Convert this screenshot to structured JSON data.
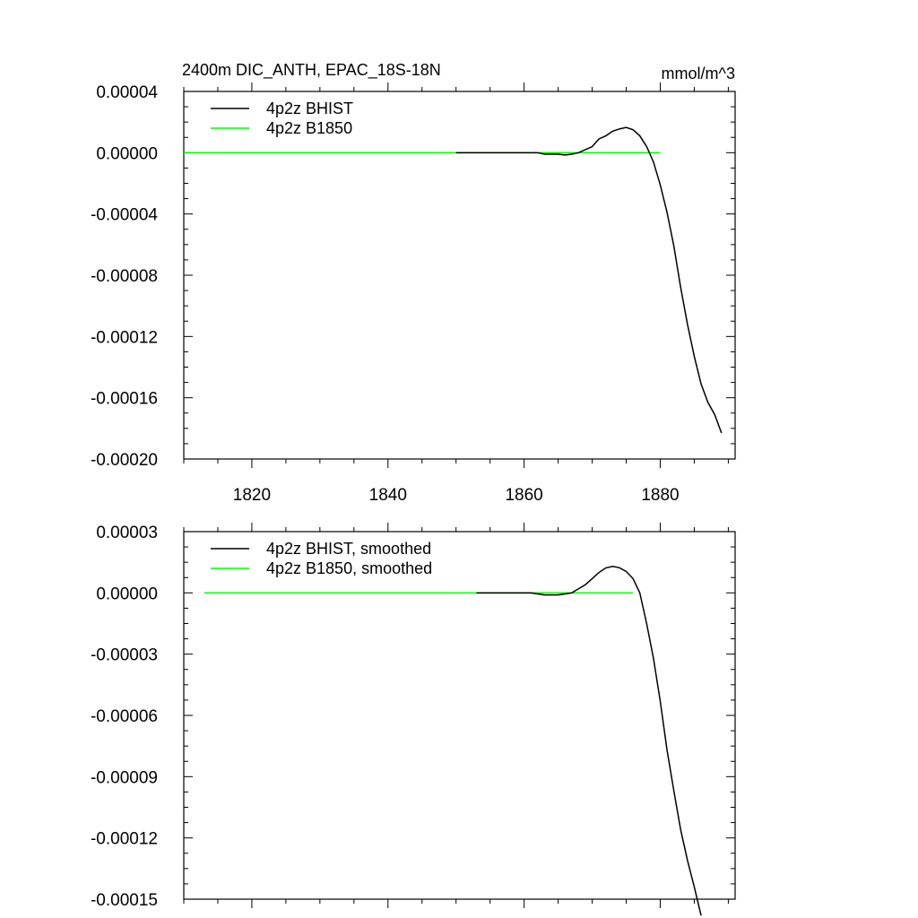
{
  "title_left": "2400m DIC_ANTH, EPAC_18S-18N",
  "title_right": "mmol/m^3",
  "colors": {
    "bhist": "#000000",
    "b1850": "#00ff00"
  },
  "chart_data": [
    {
      "type": "line",
      "xlim": [
        1810,
        1891
      ],
      "ylim": [
        -0.0002,
        4e-05
      ],
      "xticks": [
        1820,
        1840,
        1860,
        1880
      ],
      "xtick_labels": [
        "1820",
        "1840",
        "1860",
        "1880"
      ],
      "yticks": [
        4e-05,
        0,
        -4e-05,
        -8e-05,
        -0.00012,
        -0.00016,
        -0.0002
      ],
      "ytick_labels": [
        "0.00004",
        "0.00000",
        "-0.00004",
        "-0.00008",
        "-0.00012",
        "-0.00016",
        "-0.00020"
      ],
      "legend": [
        "4p2z BHIST",
        "4p2z B1850"
      ],
      "series": [
        {
          "name": "4p2z BHIST",
          "color": "#000000",
          "x": [
            1850,
            1852,
            1854,
            1856,
            1858,
            1860,
            1862,
            1863,
            1864,
            1865,
            1866,
            1867,
            1868,
            1869,
            1870,
            1871,
            1872,
            1873,
            1874,
            1875,
            1876,
            1877,
            1878,
            1879,
            1880,
            1881,
            1882,
            1883,
            1884,
            1885,
            1886,
            1887,
            1888,
            1889
          ],
          "y": [
            0,
            0,
            0,
            0,
            0,
            0,
            0,
            -1e-06,
            -1e-06,
            -1e-06,
            -1.5e-06,
            -1e-06,
            0,
            2e-06,
            4e-06,
            9e-06,
            1.1e-05,
            1.4e-05,
            1.55e-05,
            1.65e-05,
            1.5e-05,
            1.1e-05,
            4e-06,
            -6e-06,
            -2.1e-05,
            -3.9e-05,
            -6.1e-05,
            -8.8e-05,
            -0.000112,
            -0.000133,
            -0.000151,
            -0.000163,
            -0.000171,
            -0.000183
          ]
        },
        {
          "name": "4p2z B1850",
          "color": "#00ff00",
          "x": [
            1810,
            1880
          ],
          "y": [
            0,
            0
          ]
        }
      ]
    },
    {
      "type": "line",
      "xlim": [
        1810,
        1891
      ],
      "ylim": [
        -0.00015,
        3e-05
      ],
      "xticks": [
        1820,
        1840,
        1860,
        1880
      ],
      "xtick_labels": [
        "",
        "",
        "",
        ""
      ],
      "yticks": [
        3e-05,
        0,
        -3e-05,
        -6e-05,
        -9e-05,
        -0.00012,
        -0.00015
      ],
      "ytick_labels": [
        "0.00003",
        "0.00000",
        "-0.00003",
        "-0.00006",
        "-0.00009",
        "-0.00012",
        "-0.00015"
      ],
      "legend": [
        "4p2z BHIST, smoothed",
        "4p2z B1850, smoothed"
      ],
      "series": [
        {
          "name": "4p2z BHIST, smoothed",
          "color": "#000000",
          "x": [
            1853,
            1856,
            1859,
            1861,
            1863,
            1864,
            1865,
            1866,
            1867,
            1868,
            1869,
            1870,
            1871,
            1872,
            1873,
            1874,
            1875,
            1876,
            1877,
            1878,
            1879,
            1880,
            1881,
            1882,
            1883,
            1884,
            1885,
            1886
          ],
          "y": [
            0,
            0,
            0,
            0,
            -1e-06,
            -1e-06,
            -1e-06,
            -5e-07,
            0,
            2e-06,
            4e-06,
            7e-06,
            1e-05,
            1.22e-05,
            1.3e-05,
            1.23e-05,
            1.05e-05,
            7e-06,
            0,
            -1.5e-05,
            -3.2e-05,
            -5.3e-05,
            -7.7e-05,
            -9.7e-05,
            -0.000116,
            -0.000131,
            -0.000144,
            -0.000158
          ]
        },
        {
          "name": "4p2z B1850, smoothed",
          "color": "#00ff00",
          "x": [
            1813,
            1876
          ],
          "y": [
            0,
            0
          ]
        }
      ]
    }
  ]
}
